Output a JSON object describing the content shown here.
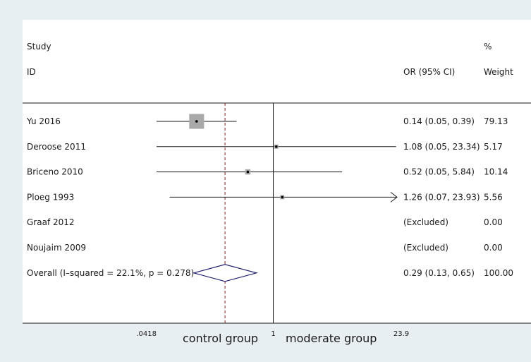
{
  "chart_data": {
    "type": "forest",
    "scale": "log",
    "xlim": [
      0.0418,
      23.9
    ],
    "ticks": [
      {
        "value": 0.0418,
        "label": ".0418"
      },
      {
        "value": 1,
        "label": "1"
      },
      {
        "value": 23.9,
        "label": "23.9"
      }
    ],
    "null_value": 1,
    "pooled_value": 0.29,
    "x_group_labels": {
      "left": "control group",
      "right": "moderate group"
    },
    "headers": {
      "study": [
        "Study",
        "ID"
      ],
      "effect": "OR (95% CI)",
      "weight": [
        "%",
        "Weight"
      ]
    },
    "studies": [
      {
        "id": "Yu 2016",
        "or": 0.14,
        "lo": 0.05,
        "hi": 0.39,
        "ci_text": "0.14 (0.05, 0.39)",
        "weight_text": "79.13",
        "weight": 79.13
      },
      {
        "id": "Deroose 2011",
        "or": 1.08,
        "lo": 0.05,
        "hi": 23.34,
        "ci_text": "1.08 (0.05, 23.34)",
        "weight_text": "5.17",
        "weight": 5.17
      },
      {
        "id": "Briceno 2010",
        "or": 0.52,
        "lo": 0.05,
        "hi": 5.84,
        "ci_text": "0.52 (0.05, 5.84)",
        "weight_text": "10.14",
        "weight": 10.14
      },
      {
        "id": "Ploeg 1993",
        "or": 1.26,
        "lo": 0.07,
        "hi": 23.93,
        "ci_text": "1.26 (0.07, 23.93)",
        "weight_text": "5.56",
        "weight": 5.56,
        "arrow_right": true
      },
      {
        "id": "Graaf 2012",
        "excluded": true,
        "ci_text": "(Excluded)",
        "weight_text": "0.00"
      },
      {
        "id": "Noujaim 2009",
        "excluded": true,
        "ci_text": "(Excluded)",
        "weight_text": "0.00"
      }
    ],
    "overall": {
      "label": "Overall  (I–squared = 22.1%, p = 0.278)",
      "or": 0.29,
      "lo": 0.13,
      "hi": 0.65,
      "ci_text": "0.29 (0.13, 0.65)",
      "weight_text": "100.00"
    },
    "colors": {
      "background": "#e8eff3",
      "panel": "#ffffff",
      "box": "#a9a9a9",
      "diamond": "#1f1f6e",
      "pooled_line": "#8b1a1a",
      "line": "#1a1a1a"
    }
  }
}
